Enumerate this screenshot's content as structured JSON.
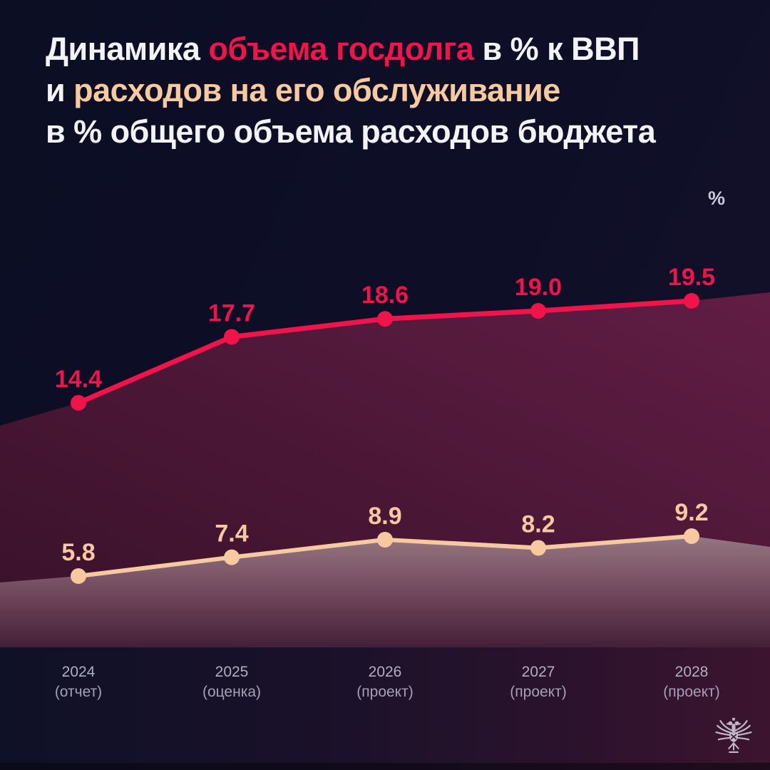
{
  "title": {
    "line1_pre": "Динамика ",
    "line1_highlight": "объема госдолга",
    "line1_post": " в % к ВВП",
    "line2_pre": "и ",
    "line2_highlight": "расходов на его обслуживание",
    "line3": "в % общего объема расходов бюджета"
  },
  "colors": {
    "debt_line": "#f0144b",
    "service_line": "#f7c9a1",
    "background_navy": "#0d0f26",
    "title_white": "#f3f2f6"
  },
  "chart_data": {
    "type": "line",
    "ylabel": "%",
    "grid": false,
    "value_labels": true,
    "legend_position": "none (series identified by colored words in title)",
    "categories": [
      {
        "year": "2024",
        "status": "(отчет)"
      },
      {
        "year": "2025",
        "status": "(оценка)"
      },
      {
        "year": "2026",
        "status": "(проект)"
      },
      {
        "year": "2027",
        "status": "(проект)"
      },
      {
        "year": "2028",
        "status": "(проект)"
      }
    ],
    "series": [
      {
        "name": "Объем госдолга, % к ВВП",
        "color": "#f0144b",
        "values": [
          14.4,
          17.7,
          18.6,
          19.0,
          19.5
        ]
      },
      {
        "name": "Расходы на обслуживание госдолга, % общего объема расходов бюджета",
        "color": "#f7c9a1",
        "values": [
          5.8,
          7.4,
          8.9,
          8.2,
          9.2
        ]
      }
    ]
  },
  "footer": {
    "logo_name": "minfin-double-headed-eagle-emblem"
  }
}
